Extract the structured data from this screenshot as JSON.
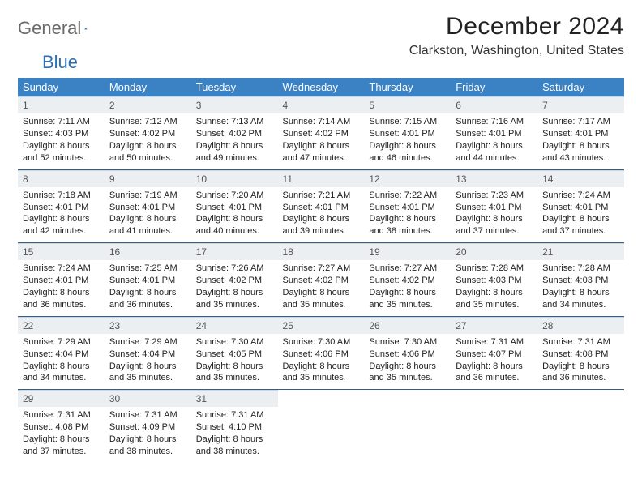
{
  "logo": {
    "word1": "General",
    "word2": "Blue"
  },
  "title": "December 2024",
  "location": "Clarkston, Washington, United States",
  "colors": {
    "header_bg": "#3b82c4",
    "header_fg": "#ffffff",
    "daynum_bg": "#eceff1",
    "row_divider": "#2f5e8f",
    "logo_gray": "#6b6b6b",
    "logo_blue": "#2d6fb5",
    "text": "#222222"
  },
  "weekdays": [
    "Sunday",
    "Monday",
    "Tuesday",
    "Wednesday",
    "Thursday",
    "Friday",
    "Saturday"
  ],
  "weeks": [
    [
      {
        "day": "1",
        "sunrise": "Sunrise: 7:11 AM",
        "sunset": "Sunset: 4:03 PM",
        "daylight": "Daylight: 8 hours and 52 minutes."
      },
      {
        "day": "2",
        "sunrise": "Sunrise: 7:12 AM",
        "sunset": "Sunset: 4:02 PM",
        "daylight": "Daylight: 8 hours and 50 minutes."
      },
      {
        "day": "3",
        "sunrise": "Sunrise: 7:13 AM",
        "sunset": "Sunset: 4:02 PM",
        "daylight": "Daylight: 8 hours and 49 minutes."
      },
      {
        "day": "4",
        "sunrise": "Sunrise: 7:14 AM",
        "sunset": "Sunset: 4:02 PM",
        "daylight": "Daylight: 8 hours and 47 minutes."
      },
      {
        "day": "5",
        "sunrise": "Sunrise: 7:15 AM",
        "sunset": "Sunset: 4:01 PM",
        "daylight": "Daylight: 8 hours and 46 minutes."
      },
      {
        "day": "6",
        "sunrise": "Sunrise: 7:16 AM",
        "sunset": "Sunset: 4:01 PM",
        "daylight": "Daylight: 8 hours and 44 minutes."
      },
      {
        "day": "7",
        "sunrise": "Sunrise: 7:17 AM",
        "sunset": "Sunset: 4:01 PM",
        "daylight": "Daylight: 8 hours and 43 minutes."
      }
    ],
    [
      {
        "day": "8",
        "sunrise": "Sunrise: 7:18 AM",
        "sunset": "Sunset: 4:01 PM",
        "daylight": "Daylight: 8 hours and 42 minutes."
      },
      {
        "day": "9",
        "sunrise": "Sunrise: 7:19 AM",
        "sunset": "Sunset: 4:01 PM",
        "daylight": "Daylight: 8 hours and 41 minutes."
      },
      {
        "day": "10",
        "sunrise": "Sunrise: 7:20 AM",
        "sunset": "Sunset: 4:01 PM",
        "daylight": "Daylight: 8 hours and 40 minutes."
      },
      {
        "day": "11",
        "sunrise": "Sunrise: 7:21 AM",
        "sunset": "Sunset: 4:01 PM",
        "daylight": "Daylight: 8 hours and 39 minutes."
      },
      {
        "day": "12",
        "sunrise": "Sunrise: 7:22 AM",
        "sunset": "Sunset: 4:01 PM",
        "daylight": "Daylight: 8 hours and 38 minutes."
      },
      {
        "day": "13",
        "sunrise": "Sunrise: 7:23 AM",
        "sunset": "Sunset: 4:01 PM",
        "daylight": "Daylight: 8 hours and 37 minutes."
      },
      {
        "day": "14",
        "sunrise": "Sunrise: 7:24 AM",
        "sunset": "Sunset: 4:01 PM",
        "daylight": "Daylight: 8 hours and 37 minutes."
      }
    ],
    [
      {
        "day": "15",
        "sunrise": "Sunrise: 7:24 AM",
        "sunset": "Sunset: 4:01 PM",
        "daylight": "Daylight: 8 hours and 36 minutes."
      },
      {
        "day": "16",
        "sunrise": "Sunrise: 7:25 AM",
        "sunset": "Sunset: 4:01 PM",
        "daylight": "Daylight: 8 hours and 36 minutes."
      },
      {
        "day": "17",
        "sunrise": "Sunrise: 7:26 AM",
        "sunset": "Sunset: 4:02 PM",
        "daylight": "Daylight: 8 hours and 35 minutes."
      },
      {
        "day": "18",
        "sunrise": "Sunrise: 7:27 AM",
        "sunset": "Sunset: 4:02 PM",
        "daylight": "Daylight: 8 hours and 35 minutes."
      },
      {
        "day": "19",
        "sunrise": "Sunrise: 7:27 AM",
        "sunset": "Sunset: 4:02 PM",
        "daylight": "Daylight: 8 hours and 35 minutes."
      },
      {
        "day": "20",
        "sunrise": "Sunrise: 7:28 AM",
        "sunset": "Sunset: 4:03 PM",
        "daylight": "Daylight: 8 hours and 35 minutes."
      },
      {
        "day": "21",
        "sunrise": "Sunrise: 7:28 AM",
        "sunset": "Sunset: 4:03 PM",
        "daylight": "Daylight: 8 hours and 34 minutes."
      }
    ],
    [
      {
        "day": "22",
        "sunrise": "Sunrise: 7:29 AM",
        "sunset": "Sunset: 4:04 PM",
        "daylight": "Daylight: 8 hours and 34 minutes."
      },
      {
        "day": "23",
        "sunrise": "Sunrise: 7:29 AM",
        "sunset": "Sunset: 4:04 PM",
        "daylight": "Daylight: 8 hours and 35 minutes."
      },
      {
        "day": "24",
        "sunrise": "Sunrise: 7:30 AM",
        "sunset": "Sunset: 4:05 PM",
        "daylight": "Daylight: 8 hours and 35 minutes."
      },
      {
        "day": "25",
        "sunrise": "Sunrise: 7:30 AM",
        "sunset": "Sunset: 4:06 PM",
        "daylight": "Daylight: 8 hours and 35 minutes."
      },
      {
        "day": "26",
        "sunrise": "Sunrise: 7:30 AM",
        "sunset": "Sunset: 4:06 PM",
        "daylight": "Daylight: 8 hours and 35 minutes."
      },
      {
        "day": "27",
        "sunrise": "Sunrise: 7:31 AM",
        "sunset": "Sunset: 4:07 PM",
        "daylight": "Daylight: 8 hours and 36 minutes."
      },
      {
        "day": "28",
        "sunrise": "Sunrise: 7:31 AM",
        "sunset": "Sunset: 4:08 PM",
        "daylight": "Daylight: 8 hours and 36 minutes."
      }
    ],
    [
      {
        "day": "29",
        "sunrise": "Sunrise: 7:31 AM",
        "sunset": "Sunset: 4:08 PM",
        "daylight": "Daylight: 8 hours and 37 minutes."
      },
      {
        "day": "30",
        "sunrise": "Sunrise: 7:31 AM",
        "sunset": "Sunset: 4:09 PM",
        "daylight": "Daylight: 8 hours and 38 minutes."
      },
      {
        "day": "31",
        "sunrise": "Sunrise: 7:31 AM",
        "sunset": "Sunset: 4:10 PM",
        "daylight": "Daylight: 8 hours and 38 minutes."
      },
      null,
      null,
      null,
      null
    ]
  ]
}
